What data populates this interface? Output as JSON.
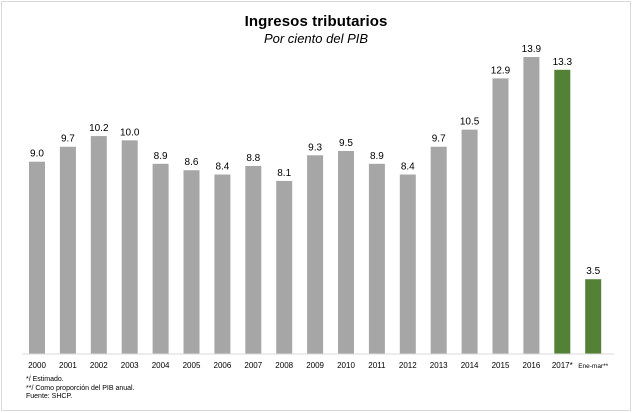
{
  "chart_data": {
    "type": "bar",
    "title": "Ingresos tributarios",
    "subtitle": "Por ciento del PIB",
    "categories": [
      "2000",
      "2001",
      "2002",
      "2003",
      "2004",
      "2005",
      "2006",
      "2007",
      "2008",
      "2009",
      "2010",
      "2011",
      "2012",
      "2013",
      "2014",
      "2015",
      "2016",
      "2017*",
      "Ene-mar**"
    ],
    "values": [
      9.0,
      9.7,
      10.2,
      10.0,
      8.9,
      8.6,
      8.4,
      8.8,
      8.1,
      9.3,
      9.5,
      8.9,
      8.4,
      9.7,
      10.5,
      12.9,
      13.9,
      13.3,
      3.5
    ],
    "value_labels": [
      "9.0",
      "9.7",
      "10.2",
      "10.0",
      "8.9",
      "8.6",
      "8.4",
      "8.8",
      "8.1",
      "9.3",
      "9.5",
      "8.9",
      "8.4",
      "9.7",
      "10.5",
      "12.9",
      "13.9",
      "13.3",
      "3.5"
    ],
    "bar_colors": [
      "#a6a6a6",
      "#a6a6a6",
      "#a6a6a6",
      "#a6a6a6",
      "#a6a6a6",
      "#a6a6a6",
      "#a6a6a6",
      "#a6a6a6",
      "#a6a6a6",
      "#a6a6a6",
      "#a6a6a6",
      "#a6a6a6",
      "#a6a6a6",
      "#a6a6a6",
      "#a6a6a6",
      "#a6a6a6",
      "#a6a6a6",
      "#538135",
      "#538135"
    ],
    "ylim": [
      0,
      13.9
    ],
    "grid": false,
    "legend": "none",
    "xlabel": "",
    "ylabel": ""
  },
  "notes": {
    "estimated": "*/ Estimado.",
    "proportion": "**/ Como proporción del PIB anual.",
    "source": "Fuente: SHCP."
  },
  "colors": {
    "historic": "#a6a6a6",
    "highlight": "#538135",
    "axis": "#d9d9d9"
  }
}
